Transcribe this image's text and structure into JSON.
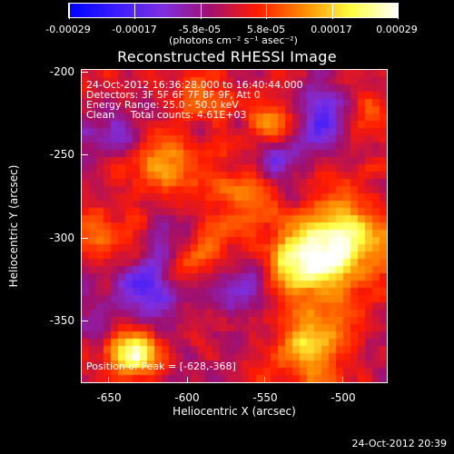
{
  "colorbar": {
    "tick_labels": [
      "-0.00029",
      "-0.00017",
      "-5.8e-05",
      "5.8e-05",
      "0.00017",
      "0.00029"
    ],
    "units_label": "(photons cm⁻² s⁻¹ asec⁻²)",
    "colors": [
      "#0000ff",
      "#3a1cff",
      "#7f2fe0",
      "#a01070",
      "#ff1b00",
      "#ff8a00",
      "#ffff40",
      "#ffffff"
    ]
  },
  "title": "Reconstructed RHESSI Image",
  "info": {
    "line1": "24-Oct-2012 16:36:28.000 to 16:40:44.000",
    "line2": "Detectors: 3F 5F 6F 7F 8F 9F, Att 0",
    "line3": "Energy Range: 25.0 - 50.0 keV",
    "line4": "Clean     Total counts: 4.61E+03",
    "peak": "Position of Peak = [-628,-368]"
  },
  "axes": {
    "x_title": "Heliocentric X (arcsec)",
    "y_title": "Heliocentric Y (arcsec)",
    "x_ticks": [
      "-650",
      "-600",
      "-550",
      "-500"
    ],
    "y_ticks": [
      "-200",
      "-250",
      "-300",
      "-350"
    ]
  },
  "timestamp": "24-Oct-2012 20:39"
}
